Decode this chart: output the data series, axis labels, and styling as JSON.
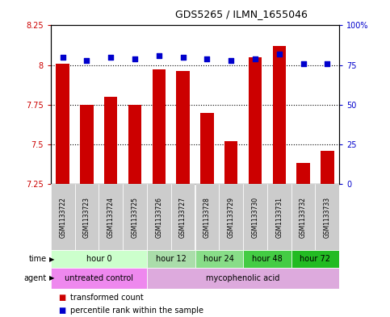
{
  "title": "GDS5265 / ILMN_1655046",
  "samples": [
    "GSM1133722",
    "GSM1133723",
    "GSM1133724",
    "GSM1133725",
    "GSM1133726",
    "GSM1133727",
    "GSM1133728",
    "GSM1133729",
    "GSM1133730",
    "GSM1133731",
    "GSM1133732",
    "GSM1133733"
  ],
  "bar_values": [
    8.01,
    7.75,
    7.8,
    7.75,
    7.97,
    7.96,
    7.7,
    7.52,
    8.05,
    8.12,
    7.38,
    7.46
  ],
  "percentile_values": [
    80,
    78,
    80,
    79,
    81,
    80,
    79,
    78,
    79,
    82,
    76,
    76
  ],
  "bar_color": "#cc0000",
  "percentile_color": "#0000cc",
  "ylim_left": [
    7.25,
    8.25
  ],
  "ylim_right": [
    0,
    100
  ],
  "yticks_left": [
    7.25,
    7.5,
    7.75,
    8.0,
    8.25
  ],
  "yticks_right": [
    0,
    25,
    50,
    75,
    100
  ],
  "ytick_labels_left": [
    "7.25",
    "7.5",
    "7.75",
    "8",
    "8.25"
  ],
  "ytick_labels_right": [
    "0",
    "25",
    "50",
    "75",
    "100%"
  ],
  "hlines": [
    7.5,
    7.75,
    8.0
  ],
  "time_groups": [
    {
      "label": "hour 0",
      "start": 0,
      "end": 4,
      "color": "#ccffcc"
    },
    {
      "label": "hour 12",
      "start": 4,
      "end": 6,
      "color": "#aaddaa"
    },
    {
      "label": "hour 24",
      "start": 6,
      "end": 8,
      "color": "#88dd88"
    },
    {
      "label": "hour 48",
      "start": 8,
      "end": 10,
      "color": "#44cc44"
    },
    {
      "label": "hour 72",
      "start": 10,
      "end": 12,
      "color": "#22bb22"
    }
  ],
  "agent_groups": [
    {
      "label": "untreated control",
      "start": 0,
      "end": 4,
      "color": "#ee88ee"
    },
    {
      "label": "mycophenolic acid",
      "start": 4,
      "end": 12,
      "color": "#ddaadd"
    }
  ],
  "legend_items": [
    {
      "label": "transformed count",
      "color": "#cc0000"
    },
    {
      "label": "percentile rank within the sample",
      "color": "#0000cc"
    }
  ],
  "bar_width": 0.55,
  "sample_box_color": "#cccccc",
  "plot_bg": "#ffffff"
}
